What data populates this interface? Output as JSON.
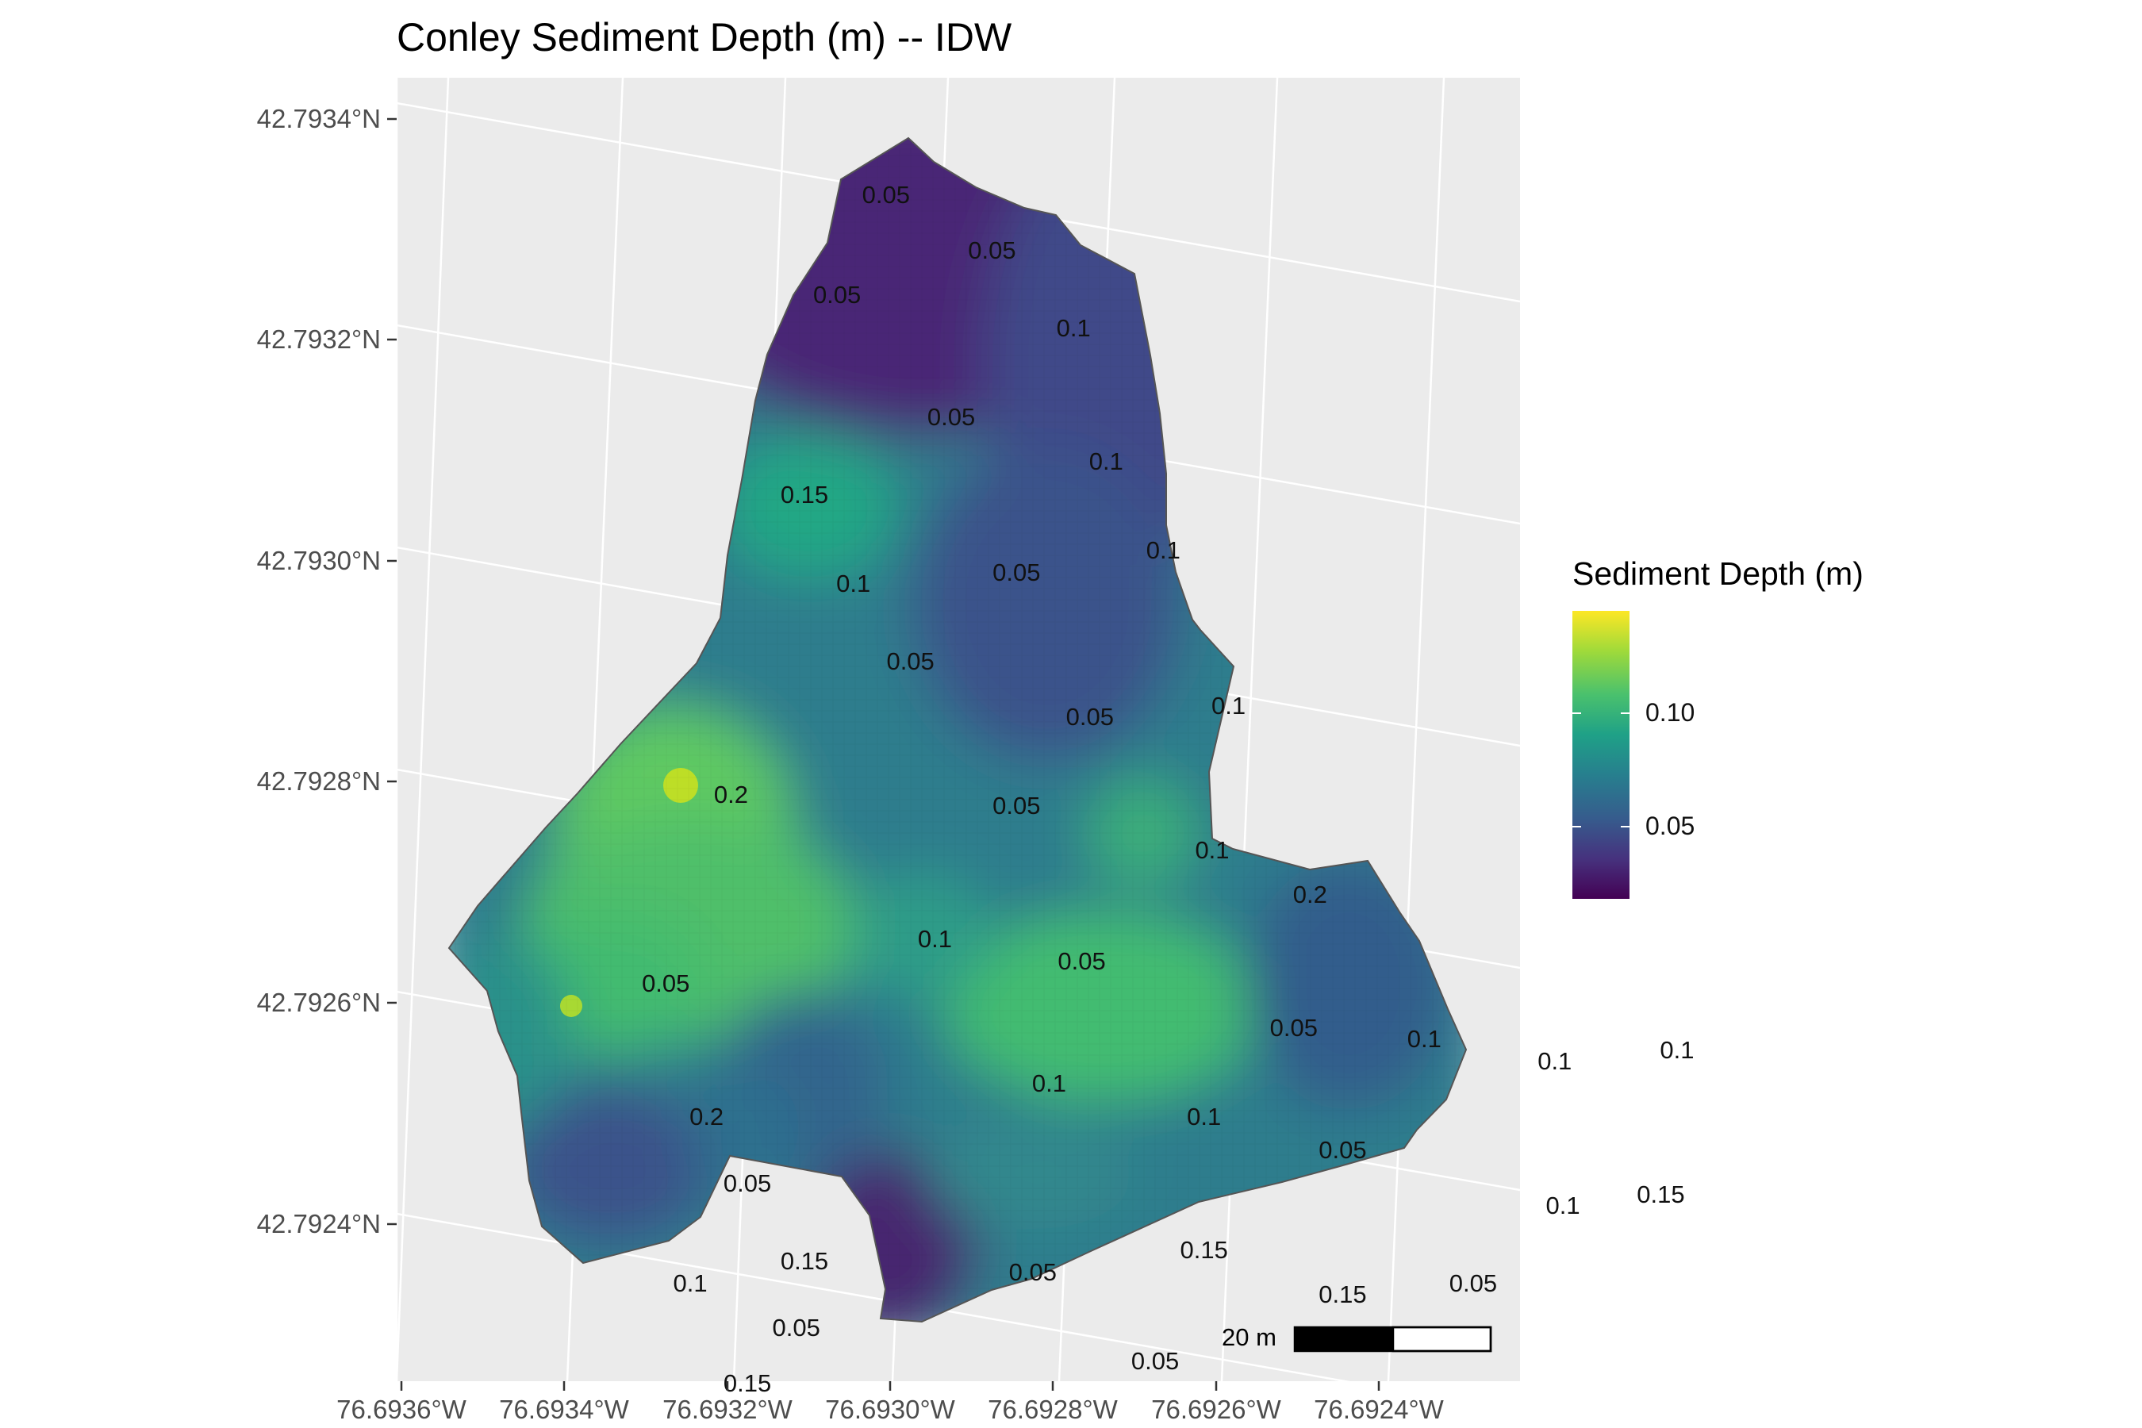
{
  "title": "Conley Sediment Depth (m) -- IDW",
  "map": {
    "y_labels": [
      "42.7934°N",
      "42.7932°N",
      "42.7930°N",
      "42.7928°N",
      "42.7926°N",
      "42.7924°N"
    ],
    "x_labels": [
      "76.6936°W",
      "76.6934°W",
      "76.6932°W",
      "76.6930°W",
      "76.6928°W",
      "76.6926°W",
      "76.6924°W"
    ],
    "contour_labels": [
      {
        "text": "0.05",
        "lon": -76.693,
        "lat": 42.79331
      },
      {
        "text": "0.05",
        "lon": -76.69287,
        "lat": 42.79326
      },
      {
        "text": "0.05",
        "lon": -76.69306,
        "lat": 42.79322
      },
      {
        "text": "0.1",
        "lon": -76.69277,
        "lat": 42.79319
      },
      {
        "text": "0.05",
        "lon": -76.69292,
        "lat": 42.79311
      },
      {
        "text": "0.1",
        "lon": -76.69273,
        "lat": 42.79307
      },
      {
        "text": "0.15",
        "lon": -76.6931,
        "lat": 42.79304
      },
      {
        "text": "0.1",
        "lon": -76.69266,
        "lat": 42.79299
      },
      {
        "text": "0.05",
        "lon": -76.69284,
        "lat": 42.79297
      },
      {
        "text": "0.1",
        "lon": -76.69304,
        "lat": 42.79296
      },
      {
        "text": "0.05",
        "lon": -76.69297,
        "lat": 42.79289
      },
      {
        "text": "0.1",
        "lon": -76.69258,
        "lat": 42.79285
      },
      {
        "text": "0.05",
        "lon": -76.69275,
        "lat": 42.79284
      },
      {
        "text": "0.2",
        "lon": -76.69319,
        "lat": 42.79277
      },
      {
        "text": "0.05",
        "lon": -76.69284,
        "lat": 42.79276
      },
      {
        "text": "0.1",
        "lon": -76.6926,
        "lat": 42.79272
      },
      {
        "text": "0.2",
        "lon": -76.69248,
        "lat": 42.79268
      },
      {
        "text": "0.1",
        "lon": -76.69294,
        "lat": 42.79264
      },
      {
        "text": "0.05",
        "lon": -76.69276,
        "lat": 42.79262
      },
      {
        "text": "0.05",
        "lon": -76.69327,
        "lat": 42.7926
      },
      {
        "text": "0.05",
        "lon": -76.6925,
        "lat": 42.79256
      },
      {
        "text": "0.1",
        "lon": -76.69234,
        "lat": 42.79255
      },
      {
        "text": "0.1",
        "lon": -76.69218,
        "lat": 42.79253
      },
      {
        "text": "0.1",
        "lon": -76.69203,
        "lat": 42.79254
      },
      {
        "text": "0.1",
        "lon": -76.6928,
        "lat": 42.79251
      },
      {
        "text": "0.1",
        "lon": -76.69261,
        "lat": 42.79248
      },
      {
        "text": "0.2",
        "lon": -76.69322,
        "lat": 42.79248
      },
      {
        "text": "0.05",
        "lon": -76.69244,
        "lat": 42.79245
      },
      {
        "text": "0.05",
        "lon": -76.69317,
        "lat": 42.79242
      },
      {
        "text": "0.1",
        "lon": -76.69217,
        "lat": 42.7924
      },
      {
        "text": "0.15",
        "lon": -76.69205,
        "lat": 42.79241
      },
      {
        "text": "0.15",
        "lon": -76.69261,
        "lat": 42.79236
      },
      {
        "text": "0.05",
        "lon": -76.69282,
        "lat": 42.79234
      },
      {
        "text": "0.15",
        "lon": -76.6931,
        "lat": 42.79235
      },
      {
        "text": "0.15",
        "lon": -76.69244,
        "lat": 42.79232
      },
      {
        "text": "0.05",
        "lon": -76.69228,
        "lat": 42.79233
      },
      {
        "text": "0.1",
        "lon": -76.69324,
        "lat": 42.79233
      },
      {
        "text": "0.05",
        "lon": -76.69311,
        "lat": 42.79229
      },
      {
        "text": "0.05",
        "lon": -76.69267,
        "lat": 42.79226
      },
      {
        "text": "0.15",
        "lon": -76.69317,
        "lat": 42.79224
      }
    ]
  },
  "legend": {
    "title": "Sediment Depth (m)",
    "ticks": [
      {
        "label": "0.10",
        "value": 0.1
      },
      {
        "label": "0.05",
        "value": 0.05
      }
    ],
    "min": 0.018,
    "max": 0.145,
    "colors": [
      "#440154",
      "#46327e",
      "#365c8d",
      "#277f8e",
      "#1fa187",
      "#4ac16d",
      "#9fda3a",
      "#fde725"
    ]
  },
  "scale_bar": {
    "label": "20 m"
  }
}
